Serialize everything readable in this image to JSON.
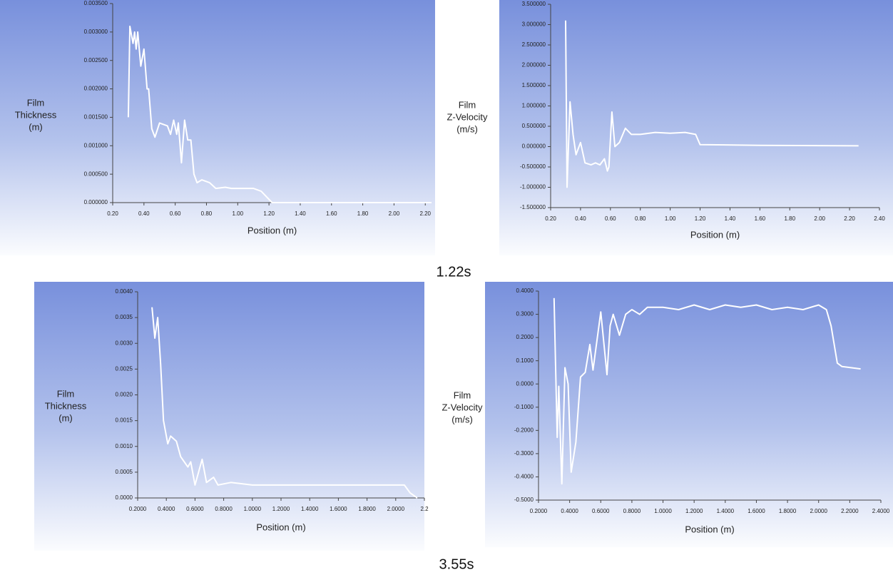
{
  "captions": [
    "1.22s",
    "3.55s"
  ],
  "chart_data": [
    {
      "type": "line",
      "xlabel": "Position (m)",
      "ylabel": [
        "Film",
        "Thickness",
        "(m)"
      ],
      "x": [
        0.3,
        0.31,
        0.33,
        0.34,
        0.35,
        0.36,
        0.38,
        0.4,
        0.42,
        0.43,
        0.45,
        0.47,
        0.5,
        0.55,
        0.57,
        0.59,
        0.61,
        0.62,
        0.64,
        0.66,
        0.68,
        0.7,
        0.72,
        0.74,
        0.77,
        0.82,
        0.86,
        0.92,
        0.96,
        1.1,
        1.15,
        1.22,
        2.24
      ],
      "series": [
        {
          "color": "#ffffff",
          "values": [
            0.0015,
            0.0031,
            0.0028,
            0.003,
            0.0027,
            0.003,
            0.0024,
            0.0027,
            0.002,
            0.002,
            0.0013,
            0.00115,
            0.0014,
            0.00135,
            0.0012,
            0.00145,
            0.0012,
            0.0014,
            0.0007,
            0.00145,
            0.0011,
            0.0011,
            0.0005,
            0.00035,
            0.0004,
            0.00035,
            0.00025,
            0.00027,
            0.00025,
            0.00025,
            0.0002,
            0,
            0
          ]
        }
      ],
      "xlim": [
        0.2,
        2.24
      ],
      "ylim": [
        0,
        0.0035
      ],
      "xticks": [
        {
          "value": 0.2,
          "label": "0.20"
        },
        {
          "value": 0.4,
          "label": "0.40"
        },
        {
          "value": 0.6,
          "label": "0.60"
        },
        {
          "value": 0.8,
          "label": "0.80"
        },
        {
          "value": 1.0,
          "label": "1.00"
        },
        {
          "value": 1.2,
          "label": "1.20"
        },
        {
          "value": 1.4,
          "label": "1.40"
        },
        {
          "value": 1.6,
          "label": "1.60"
        },
        {
          "value": 1.8,
          "label": "1.80"
        },
        {
          "value": 2.0,
          "label": "2.00"
        },
        {
          "value": 2.2,
          "label": "2.20"
        }
      ],
      "yticks": [
        {
          "value": 0,
          "label": "0.000000"
        },
        {
          "value": 0.0005,
          "label": "0.000500"
        },
        {
          "value": 0.001,
          "label": "0.001000"
        },
        {
          "value": 0.0015,
          "label": "0.001500"
        },
        {
          "value": 0.002,
          "label": "0.002000"
        },
        {
          "value": 0.0025,
          "label": "0.002500"
        },
        {
          "value": 0.003,
          "label": "0.003000"
        },
        {
          "value": 0.0035,
          "label": "0.003500"
        }
      ]
    },
    {
      "type": "line",
      "xlabel": "Position (m)",
      "ylabel": [
        "Film",
        "Z-Velocity",
        "(m/s)"
      ],
      "x": [
        0.3,
        0.31,
        0.33,
        0.35,
        0.37,
        0.4,
        0.43,
        0.47,
        0.5,
        0.53,
        0.56,
        0.58,
        0.59,
        0.61,
        0.63,
        0.66,
        0.7,
        0.74,
        0.8,
        0.9,
        1.0,
        1.1,
        1.17,
        1.2,
        1.6,
        2.26
      ],
      "series": [
        {
          "color": "#ffffff",
          "values": [
            3.1,
            -1.0,
            1.1,
            0.3,
            -0.2,
            0.1,
            -0.4,
            -0.45,
            -0.4,
            -0.45,
            -0.3,
            -0.6,
            -0.5,
            0.85,
            0.0,
            0.1,
            0.45,
            0.3,
            0.3,
            0.35,
            0.33,
            0.35,
            0.3,
            0.05,
            0.03,
            0.02
          ]
        }
      ],
      "xlim": [
        0.2,
        2.4
      ],
      "ylim": [
        -1.5,
        3.5
      ],
      "xticks": [
        {
          "value": 0.2,
          "label": "0.20"
        },
        {
          "value": 0.4,
          "label": "0.40"
        },
        {
          "value": 0.6,
          "label": "0.60"
        },
        {
          "value": 0.8,
          "label": "0.80"
        },
        {
          "value": 1.0,
          "label": "1.00"
        },
        {
          "value": 1.2,
          "label": "1.20"
        },
        {
          "value": 1.4,
          "label": "1.40"
        },
        {
          "value": 1.6,
          "label": "1.60"
        },
        {
          "value": 1.8,
          "label": "1.80"
        },
        {
          "value": 2.0,
          "label": "2.00"
        },
        {
          "value": 2.2,
          "label": "2.20"
        },
        {
          "value": 2.4,
          "label": "2.40"
        }
      ],
      "yticks": [
        {
          "value": -1.5,
          "label": "-1.500000"
        },
        {
          "value": -1.0,
          "label": "-1.000000"
        },
        {
          "value": -0.5,
          "label": "-0.500000"
        },
        {
          "value": 0,
          "label": "0.000000"
        },
        {
          "value": 0.5,
          "label": "0.500000"
        },
        {
          "value": 1.0,
          "label": "1.000000"
        },
        {
          "value": 1.5,
          "label": "1.500000"
        },
        {
          "value": 2.0,
          "label": "2.000000"
        },
        {
          "value": 2.5,
          "label": "2.500000"
        },
        {
          "value": 3.0,
          "label": "3.000000"
        },
        {
          "value": 3.5,
          "label": "3.500000"
        }
      ]
    },
    {
      "type": "line",
      "xlabel": "Position (m)",
      "ylabel": [
        "Film",
        "Thickness",
        "(m)"
      ],
      "x": [
        0.3,
        0.32,
        0.34,
        0.36,
        0.38,
        0.41,
        0.43,
        0.47,
        0.5,
        0.55,
        0.57,
        0.6,
        0.65,
        0.68,
        0.73,
        0.76,
        0.85,
        1.0,
        1.5,
        2.0,
        2.06,
        2.1,
        2.15
      ],
      "series": [
        {
          "color": "#ffffff",
          "values": [
            0.0037,
            0.0031,
            0.0035,
            0.0026,
            0.0015,
            0.00105,
            0.0012,
            0.0011,
            0.0008,
            0.0006,
            0.0007,
            0.00025,
            0.00075,
            0.0003,
            0.0004,
            0.00025,
            0.0003,
            0.00025,
            0.00025,
            0.00025,
            0.00025,
            0.0001,
            0
          ]
        }
      ],
      "xlim": [
        0.2,
        2.2
      ],
      "ylim": [
        0,
        0.004
      ],
      "xticks": [
        {
          "value": 0.2,
          "label": "0.2000"
        },
        {
          "value": 0.4,
          "label": "0.4000"
        },
        {
          "value": 0.6,
          "label": "0.6000"
        },
        {
          "value": 0.8,
          "label": "0.8000"
        },
        {
          "value": 1.0,
          "label": "1.0000"
        },
        {
          "value": 1.2,
          "label": "1.2000"
        },
        {
          "value": 1.4,
          "label": "1.4000"
        },
        {
          "value": 1.6,
          "label": "1.6000"
        },
        {
          "value": 1.8,
          "label": "1.8000"
        },
        {
          "value": 2.0,
          "label": "2.0000"
        },
        2.2
      ],
      "yticks": [
        {
          "value": 0,
          "label": "0.0000"
        },
        {
          "value": 0.0005,
          "label": "0.0005"
        },
        {
          "value": 0.001,
          "label": "0.0010"
        },
        {
          "value": 0.0015,
          "label": "0.0015"
        },
        {
          "value": 0.002,
          "label": "0.0020"
        },
        {
          "value": 0.0025,
          "label": "0.0025"
        },
        {
          "value": 0.003,
          "label": "0.0030"
        },
        {
          "value": 0.0035,
          "label": "0.0035"
        },
        {
          "value": 0.004,
          "label": "0.0040"
        }
      ]
    },
    {
      "type": "line",
      "xlabel": "Position (m)",
      "ylabel": [
        "Film",
        "Z-Velocity",
        "(m/s)"
      ],
      "x": [
        0.3,
        0.32,
        0.33,
        0.35,
        0.37,
        0.39,
        0.41,
        0.44,
        0.47,
        0.5,
        0.53,
        0.55,
        0.6,
        0.64,
        0.66,
        0.68,
        0.72,
        0.76,
        0.8,
        0.85,
        0.9,
        1.0,
        1.1,
        1.2,
        1.3,
        1.4,
        1.5,
        1.6,
        1.7,
        1.8,
        1.9,
        2.0,
        2.05,
        2.08,
        2.12,
        2.15,
        2.27
      ],
      "series": [
        {
          "color": "#ffffff",
          "values": [
            0.37,
            -0.23,
            -0.01,
            -0.43,
            0.07,
            0.0,
            -0.38,
            -0.25,
            0.03,
            0.05,
            0.17,
            0.06,
            0.31,
            0.04,
            0.25,
            0.3,
            0.21,
            0.3,
            0.32,
            0.3,
            0.33,
            0.33,
            0.32,
            0.34,
            0.32,
            0.34,
            0.33,
            0.34,
            0.32,
            0.33,
            0.32,
            0.34,
            0.32,
            0.25,
            0.09,
            0.075,
            0.065
          ]
        }
      ],
      "xlim": [
        0.2,
        2.4
      ],
      "ylim": [
        -0.5,
        0.4
      ],
      "xticks": [
        {
          "value": 0.2,
          "label": "0.2000"
        },
        {
          "value": 0.4,
          "label": "0.4000"
        },
        {
          "value": 0.6,
          "label": "0.6000"
        },
        {
          "value": 0.8,
          "label": "0.8000"
        },
        {
          "value": 1.0,
          "label": "1.0000"
        },
        {
          "value": 1.2,
          "label": "1.2000"
        },
        {
          "value": 1.4,
          "label": "1.4000"
        },
        {
          "value": 1.6,
          "label": "1.6000"
        },
        {
          "value": 1.8,
          "label": "1.8000"
        },
        {
          "value": 2.0,
          "label": "2.0000"
        },
        {
          "value": 2.2,
          "label": "2.2000"
        },
        {
          "value": 2.4,
          "label": "2.4000"
        }
      ],
      "yticks": [
        {
          "value": -0.5,
          "label": "-0.5000"
        },
        {
          "value": -0.4,
          "label": "-0.4000"
        },
        {
          "value": -0.3,
          "label": "-0.3000"
        },
        {
          "value": -0.2,
          "label": "-0.2000"
        },
        {
          "value": -0.1,
          "label": "-0.1000"
        },
        {
          "value": 0,
          "label": "0.0000"
        },
        {
          "value": 0.1,
          "label": "0.1000"
        },
        {
          "value": 0.2,
          "label": "0.2000"
        },
        {
          "value": 0.3,
          "label": "0.3000"
        },
        {
          "value": 0.4,
          "label": "0.4000"
        }
      ]
    }
  ]
}
